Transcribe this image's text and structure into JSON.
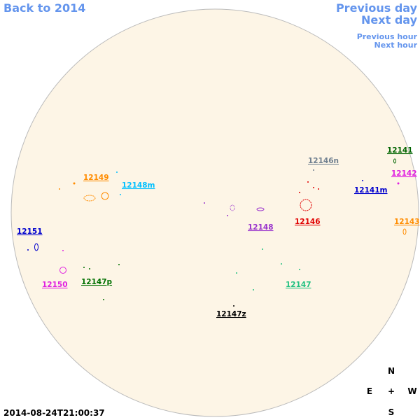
{
  "navigation": {
    "back": "Back to 2014",
    "previous_day": "Previous day",
    "next_day": "Next day",
    "previous_hour": "Previous hour",
    "next_hour": "Next hour"
  },
  "regions": [
    {
      "label": "12141",
      "color": "#006400"
    },
    {
      "label": "12142",
      "color": "#e020e0"
    },
    {
      "label": "12143",
      "color": "#ff8c00"
    },
    {
      "label": "12146n",
      "color": "#708090"
    },
    {
      "label": "12141m",
      "color": "#0000cd"
    },
    {
      "label": "12146",
      "color": "#e00000"
    },
    {
      "label": "12148",
      "color": "#9932cc"
    },
    {
      "label": "12149",
      "color": "#ff8c00"
    },
    {
      "label": "12148m",
      "color": "#00bfff"
    },
    {
      "label": "12151",
      "color": "#0000cd"
    },
    {
      "label": "12150",
      "color": "#e020e0"
    },
    {
      "label": "12147p",
      "color": "#007000"
    },
    {
      "label": "12147",
      "color": "#20c080"
    },
    {
      "label": "12147z",
      "color": "#000000"
    }
  ],
  "compass": {
    "north": "N",
    "east": "E",
    "center": "+",
    "west": "W",
    "south": "S"
  },
  "timestamp": "2014-08-24T21:00:37"
}
